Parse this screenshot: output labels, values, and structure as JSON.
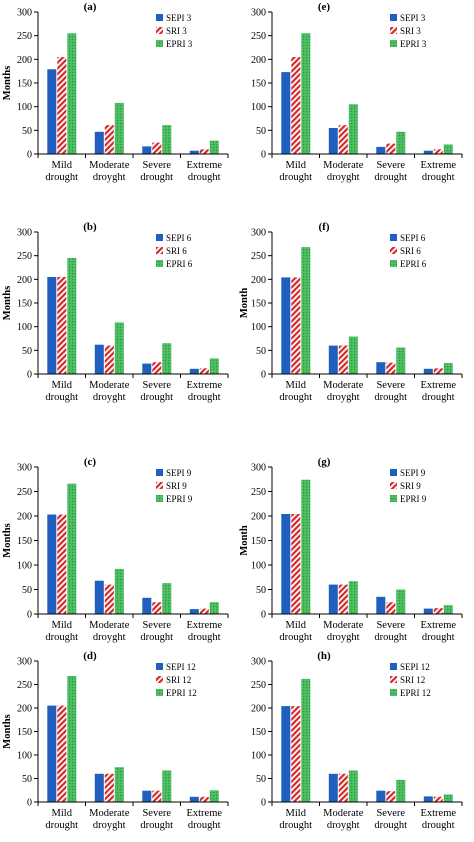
{
  "colors": {
    "sepi": "#1f5fbf",
    "sri": "#d62828",
    "epri": "#4cc063",
    "axis": "#000000"
  },
  "chart_data": [
    {
      "type": "bar",
      "title": "(a)",
      "ylabel": "Months",
      "ylim": [
        0,
        300
      ],
      "yticks": [
        0,
        50,
        100,
        150,
        200,
        250,
        300
      ],
      "categories": [
        "Mild drought",
        "Moderate droyght",
        "Severe drought",
        "Extreme drought"
      ],
      "series": [
        {
          "name": "SEPI 3",
          "values": [
            179,
            47,
            16,
            7
          ]
        },
        {
          "name": "SRI 3",
          "values": [
            205,
            61,
            24,
            10
          ]
        },
        {
          "name": "EPRI 3",
          "values": [
            255,
            108,
            61,
            28
          ]
        }
      ]
    },
    {
      "type": "bar",
      "title": "(e)",
      "ylabel": "",
      "ylim": [
        0,
        300
      ],
      "yticks": [
        0,
        50,
        100,
        150,
        200,
        250,
        300
      ],
      "categories": [
        "Mild drought",
        "Moderate droyght",
        "Severe drought",
        "Extreme drought"
      ],
      "series": [
        {
          "name": "SEPI 3",
          "values": [
            173,
            55,
            15,
            7
          ]
        },
        {
          "name": "SRI 3",
          "values": [
            205,
            61,
            22,
            10
          ]
        },
        {
          "name": "EPRI 3",
          "values": [
            255,
            105,
            47,
            20
          ]
        }
      ]
    },
    {
      "type": "bar",
      "title": "(b)",
      "ylabel": "Months",
      "ylim": [
        0,
        300
      ],
      "yticks": [
        0,
        50,
        100,
        150,
        200,
        250,
        300
      ],
      "categories": [
        "Mild drought",
        "Moderate droyght",
        "Severe drought",
        "Extreme drought"
      ],
      "series": [
        {
          "name": "SEPI 6",
          "values": [
            205,
            62,
            22,
            11
          ]
        },
        {
          "name": "SRI 6",
          "values": [
            205,
            60,
            25,
            12
          ]
        },
        {
          "name": "EPRI 6",
          "values": [
            245,
            109,
            65,
            33
          ]
        }
      ]
    },
    {
      "type": "bar",
      "title": "(f)",
      "ylabel": "Month",
      "ylim": [
        0,
        300
      ],
      "yticks": [
        0,
        50,
        100,
        150,
        200,
        250,
        300
      ],
      "categories": [
        "Mild drought",
        "Moderate droyght",
        "Severe drought",
        "Extreme drought"
      ],
      "series": [
        {
          "name": "SEPI 6",
          "values": [
            204,
            60,
            25,
            11
          ]
        },
        {
          "name": "SRI 6",
          "values": [
            204,
            60,
            24,
            12
          ]
        },
        {
          "name": "EPRI 6",
          "values": [
            268,
            79,
            56,
            23
          ]
        }
      ]
    },
    {
      "type": "bar",
      "title": "(c)",
      "ylabel": "Months",
      "ylim": [
        0,
        300
      ],
      "yticks": [
        0,
        50,
        100,
        150,
        200,
        250,
        300
      ],
      "categories": [
        "Mild drought",
        "Moderate droyght",
        "Severe drought",
        "Extreme drought"
      ],
      "series": [
        {
          "name": "SEPI 9",
          "values": [
            203,
            68,
            33,
            10
          ]
        },
        {
          "name": "SRI 9",
          "values": [
            203,
            60,
            24,
            11
          ]
        },
        {
          "name": "EPRI 9",
          "values": [
            266,
            92,
            63,
            24
          ]
        }
      ]
    },
    {
      "type": "bar",
      "title": "(g)",
      "ylabel": "Month",
      "ylim": [
        0,
        300
      ],
      "yticks": [
        0,
        50,
        100,
        150,
        200,
        250,
        300
      ],
      "categories": [
        "Mild drought",
        "Moderate droyght",
        "Severe drought",
        "Extreme drought"
      ],
      "series": [
        {
          "name": "SEPI 9",
          "values": [
            204,
            60,
            35,
            11
          ]
        },
        {
          "name": "SRI 9",
          "values": [
            204,
            60,
            24,
            12
          ]
        },
        {
          "name": "EPRI 9",
          "values": [
            274,
            67,
            50,
            18
          ]
        }
      ]
    },
    {
      "type": "bar",
      "title": "(d)",
      "ylabel": "Months",
      "ylim": [
        0,
        300
      ],
      "yticks": [
        0,
        50,
        100,
        150,
        200,
        250,
        300
      ],
      "categories": [
        "Mild drought",
        "Moderate droyght",
        "Severe drought",
        "Extreme drought"
      ],
      "series": [
        {
          "name": "SEPI 12",
          "values": [
            205,
            60,
            24,
            11
          ]
        },
        {
          "name": "SRI 12",
          "values": [
            205,
            60,
            24,
            11
          ]
        },
        {
          "name": "EPRI 12",
          "values": [
            268,
            74,
            67,
            25
          ]
        }
      ]
    },
    {
      "type": "bar",
      "title": "(h)",
      "ylabel": "",
      "ylim": [
        0,
        300
      ],
      "yticks": [
        0,
        50,
        100,
        150,
        200,
        250,
        300
      ],
      "categories": [
        "Mild drought",
        "Moderate droyght",
        "Severe drought",
        "Extreme drought"
      ],
      "series": [
        {
          "name": "SEPI 12",
          "values": [
            204,
            60,
            24,
            12
          ]
        },
        {
          "name": "SRI 12",
          "values": [
            204,
            60,
            23,
            11
          ]
        },
        {
          "name": "EPRI 12",
          "values": [
            262,
            67,
            47,
            16
          ]
        }
      ]
    }
  ]
}
